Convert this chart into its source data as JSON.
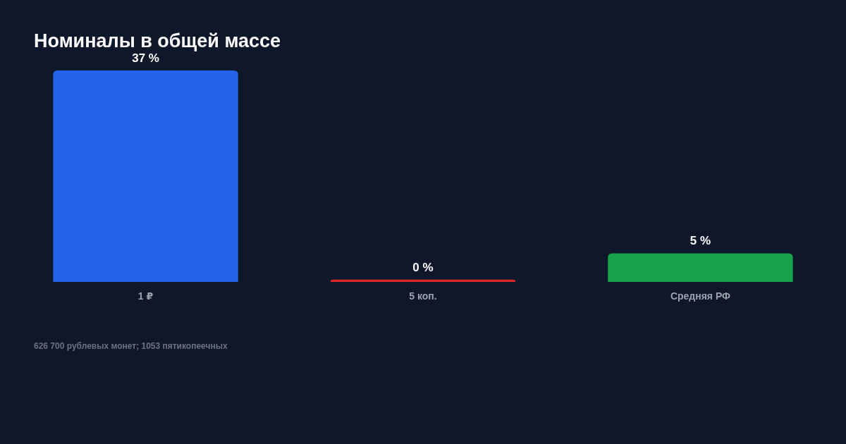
{
  "chart_data": {
    "type": "bar",
    "title": "Номиналы в общей массе",
    "categories": [
      "1 ₽",
      "5 коп.",
      "Средняя РФ"
    ],
    "values": [
      37,
      0.4,
      5
    ],
    "colors": [
      "#2563eb",
      "#dc2626",
      "#16a34a"
    ],
    "value_labels": [
      "37 %",
      "0 %",
      "5 %"
    ],
    "annotations": [
      "626 700 рублевых монет; 1053 пятикопеечных"
    ]
  }
}
